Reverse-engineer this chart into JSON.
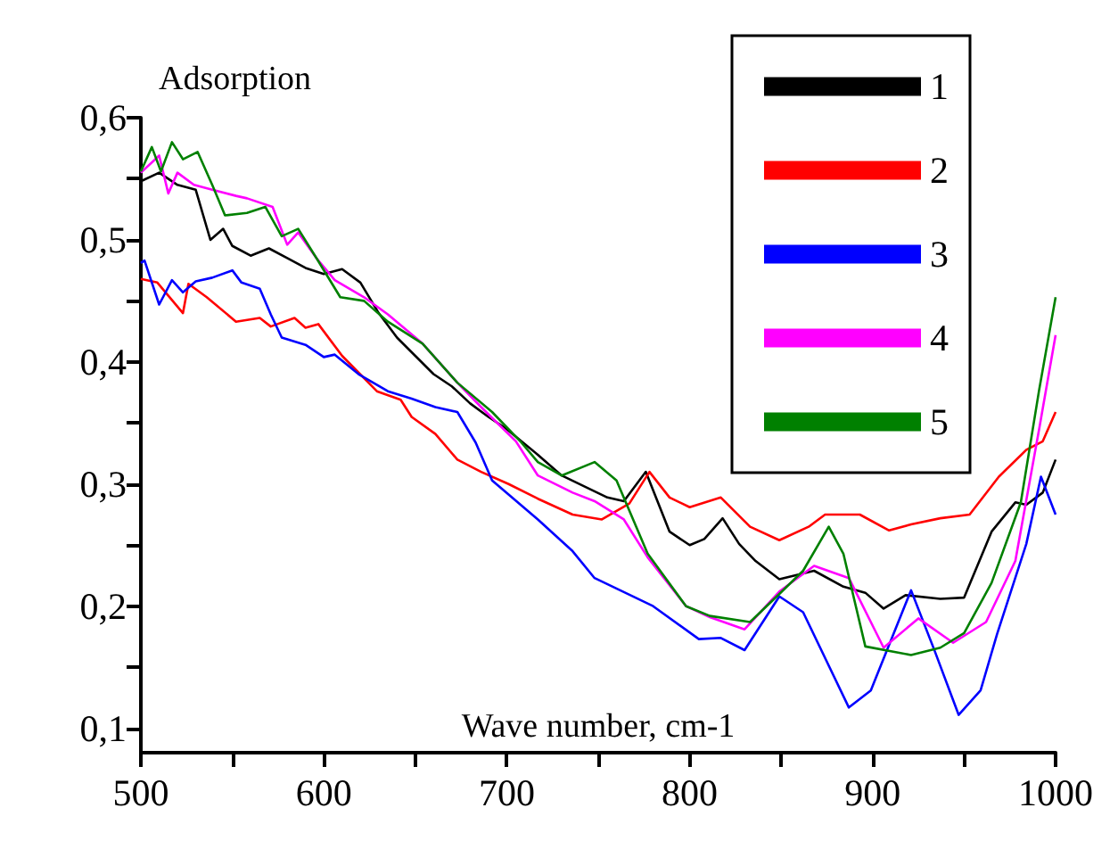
{
  "chart_data": {
    "type": "line",
    "ylabel": "Adsorption",
    "xlabel": "Wave number, cm-1",
    "xlim": [
      500,
      1000
    ],
    "ylim": [
      0.08,
      0.6
    ],
    "xticks": [
      500,
      {
        "value": 550,
        "label": null
      },
      600,
      {
        "value": 650,
        "label": null
      },
      700,
      {
        "value": 750,
        "label": null
      },
      800,
      {
        "value": 850,
        "label": null
      },
      900,
      {
        "value": 950,
        "label": null
      },
      1000
    ],
    "yticks": [
      {
        "value": 0.1,
        "label": "0,1"
      },
      {
        "value": 0.15,
        "label": null
      },
      {
        "value": 0.2,
        "label": "0,2"
      },
      {
        "value": 0.25,
        "label": null
      },
      {
        "value": 0.3,
        "label": "0,3"
      },
      {
        "value": 0.35,
        "label": null
      },
      {
        "value": 0.4,
        "label": "0,4"
      },
      {
        "value": 0.45,
        "label": null
      },
      {
        "value": 0.5,
        "label": "0,5"
      },
      {
        "value": 0.55,
        "label": null
      },
      {
        "value": 0.6,
        "label": "0,6"
      }
    ],
    "grid": false,
    "legend": "top right",
    "marker": "none",
    "line_style": "solid",
    "series": [
      {
        "name": "1",
        "color": "#000000",
        "x": [
          500,
          510,
          520,
          530,
          538,
          545,
          550,
          560,
          570,
          580,
          590,
          600,
          610,
          620,
          630,
          640,
          650,
          660,
          670,
          680,
          690,
          700,
          717,
          730,
          755,
          764,
          776,
          789,
          800,
          808,
          818,
          827,
          836,
          849,
          868,
          884,
          896,
          906,
          918,
          937,
          950,
          965,
          978,
          984,
          993,
          1000
        ],
        "values": [
          0.548,
          0.555,
          0.545,
          0.541,
          0.5,
          0.509,
          0.495,
          0.487,
          0.493,
          0.485,
          0.477,
          0.472,
          0.476,
          0.465,
          0.44,
          0.42,
          0.405,
          0.39,
          0.38,
          0.366,
          0.355,
          0.345,
          0.324,
          0.307,
          0.289,
          0.286,
          0.31,
          0.261,
          0.25,
          0.255,
          0.272,
          0.251,
          0.237,
          0.222,
          0.229,
          0.216,
          0.211,
          0.198,
          0.209,
          0.206,
          0.207,
          0.261,
          0.285,
          0.283,
          0.293,
          0.32
        ]
      },
      {
        "name": "2",
        "color": "#ff0000",
        "x": [
          500,
          509,
          523,
          526,
          536,
          552,
          565,
          571,
          584,
          590,
          597,
          610,
          629,
          642,
          648,
          661,
          673,
          686,
          701,
          717,
          736,
          752,
          767,
          778,
          789,
          800,
          817,
          833,
          849,
          865,
          874,
          893,
          909,
          921,
          937,
          953,
          969,
          984,
          993,
          1000
        ],
        "values": [
          0.468,
          0.465,
          0.44,
          0.464,
          0.453,
          0.433,
          0.436,
          0.429,
          0.436,
          0.428,
          0.431,
          0.405,
          0.376,
          0.369,
          0.355,
          0.341,
          0.32,
          0.31,
          0.3,
          0.288,
          0.275,
          0.271,
          0.284,
          0.31,
          0.289,
          0.281,
          0.289,
          0.265,
          0.254,
          0.265,
          0.275,
          0.275,
          0.262,
          0.267,
          0.272,
          0.275,
          0.306,
          0.328,
          0.335,
          0.359
        ]
      },
      {
        "name": "3",
        "color": "#0000ff",
        "x": [
          500,
          502,
          510,
          517,
          523,
          530,
          539,
          550,
          555,
          565,
          571,
          577,
          590,
          600,
          606,
          619,
          635,
          648,
          661,
          673,
          683,
          692,
          717,
          736,
          748,
          780,
          805,
          817,
          830,
          849,
          862,
          887,
          899,
          921,
          934,
          947,
          959,
          968,
          984,
          992,
          1000
        ],
        "values": [
          0.481,
          0.483,
          0.447,
          0.467,
          0.457,
          0.466,
          0.469,
          0.475,
          0.465,
          0.46,
          0.439,
          0.42,
          0.414,
          0.404,
          0.406,
          0.39,
          0.376,
          0.37,
          0.363,
          0.359,
          0.334,
          0.303,
          0.271,
          0.245,
          0.223,
          0.2,
          0.173,
          0.174,
          0.164,
          0.208,
          0.195,
          0.117,
          0.131,
          0.213,
          0.163,
          0.111,
          0.131,
          0.177,
          0.251,
          0.306,
          0.275
        ]
      },
      {
        "name": "4",
        "color": "#ff00ff",
        "x": [
          500,
          510,
          515,
          520,
          529,
          539,
          552,
          558,
          572,
          580,
          586,
          596,
          606,
          622,
          635,
          654,
          673,
          686,
          705,
          717,
          736,
          748,
          764,
          777,
          798,
          811,
          830,
          849,
          868,
          887,
          906,
          925,
          944,
          962,
          978,
          991,
          1000
        ],
        "values": [
          0.555,
          0.569,
          0.538,
          0.555,
          0.545,
          0.541,
          0.536,
          0.534,
          0.527,
          0.496,
          0.506,
          0.485,
          0.467,
          0.453,
          0.439,
          0.415,
          0.383,
          0.363,
          0.335,
          0.307,
          0.293,
          0.286,
          0.271,
          0.24,
          0.2,
          0.191,
          0.181,
          0.212,
          0.233,
          0.223,
          0.166,
          0.19,
          0.17,
          0.187,
          0.237,
          0.345,
          0.422
        ]
      },
      {
        "name": "5",
        "color": "#008000",
        "x": [
          500,
          506,
          511,
          517,
          523,
          531,
          539,
          546,
          558,
          568,
          577,
          586,
          596,
          609,
          622,
          635,
          654,
          673,
          692,
          708,
          717,
          730,
          748,
          760,
          777,
          798,
          811,
          833,
          849,
          862,
          876,
          884,
          896,
          921,
          937,
          950,
          965,
          981,
          991,
          1000
        ],
        "values": [
          0.556,
          0.576,
          0.556,
          0.58,
          0.566,
          0.572,
          0.545,
          0.52,
          0.522,
          0.527,
          0.503,
          0.509,
          0.485,
          0.453,
          0.45,
          0.433,
          0.415,
          0.383,
          0.359,
          0.334,
          0.318,
          0.307,
          0.318,
          0.303,
          0.243,
          0.2,
          0.192,
          0.187,
          0.21,
          0.229,
          0.265,
          0.243,
          0.167,
          0.16,
          0.166,
          0.178,
          0.219,
          0.285,
          0.377,
          0.453
        ]
      }
    ]
  }
}
